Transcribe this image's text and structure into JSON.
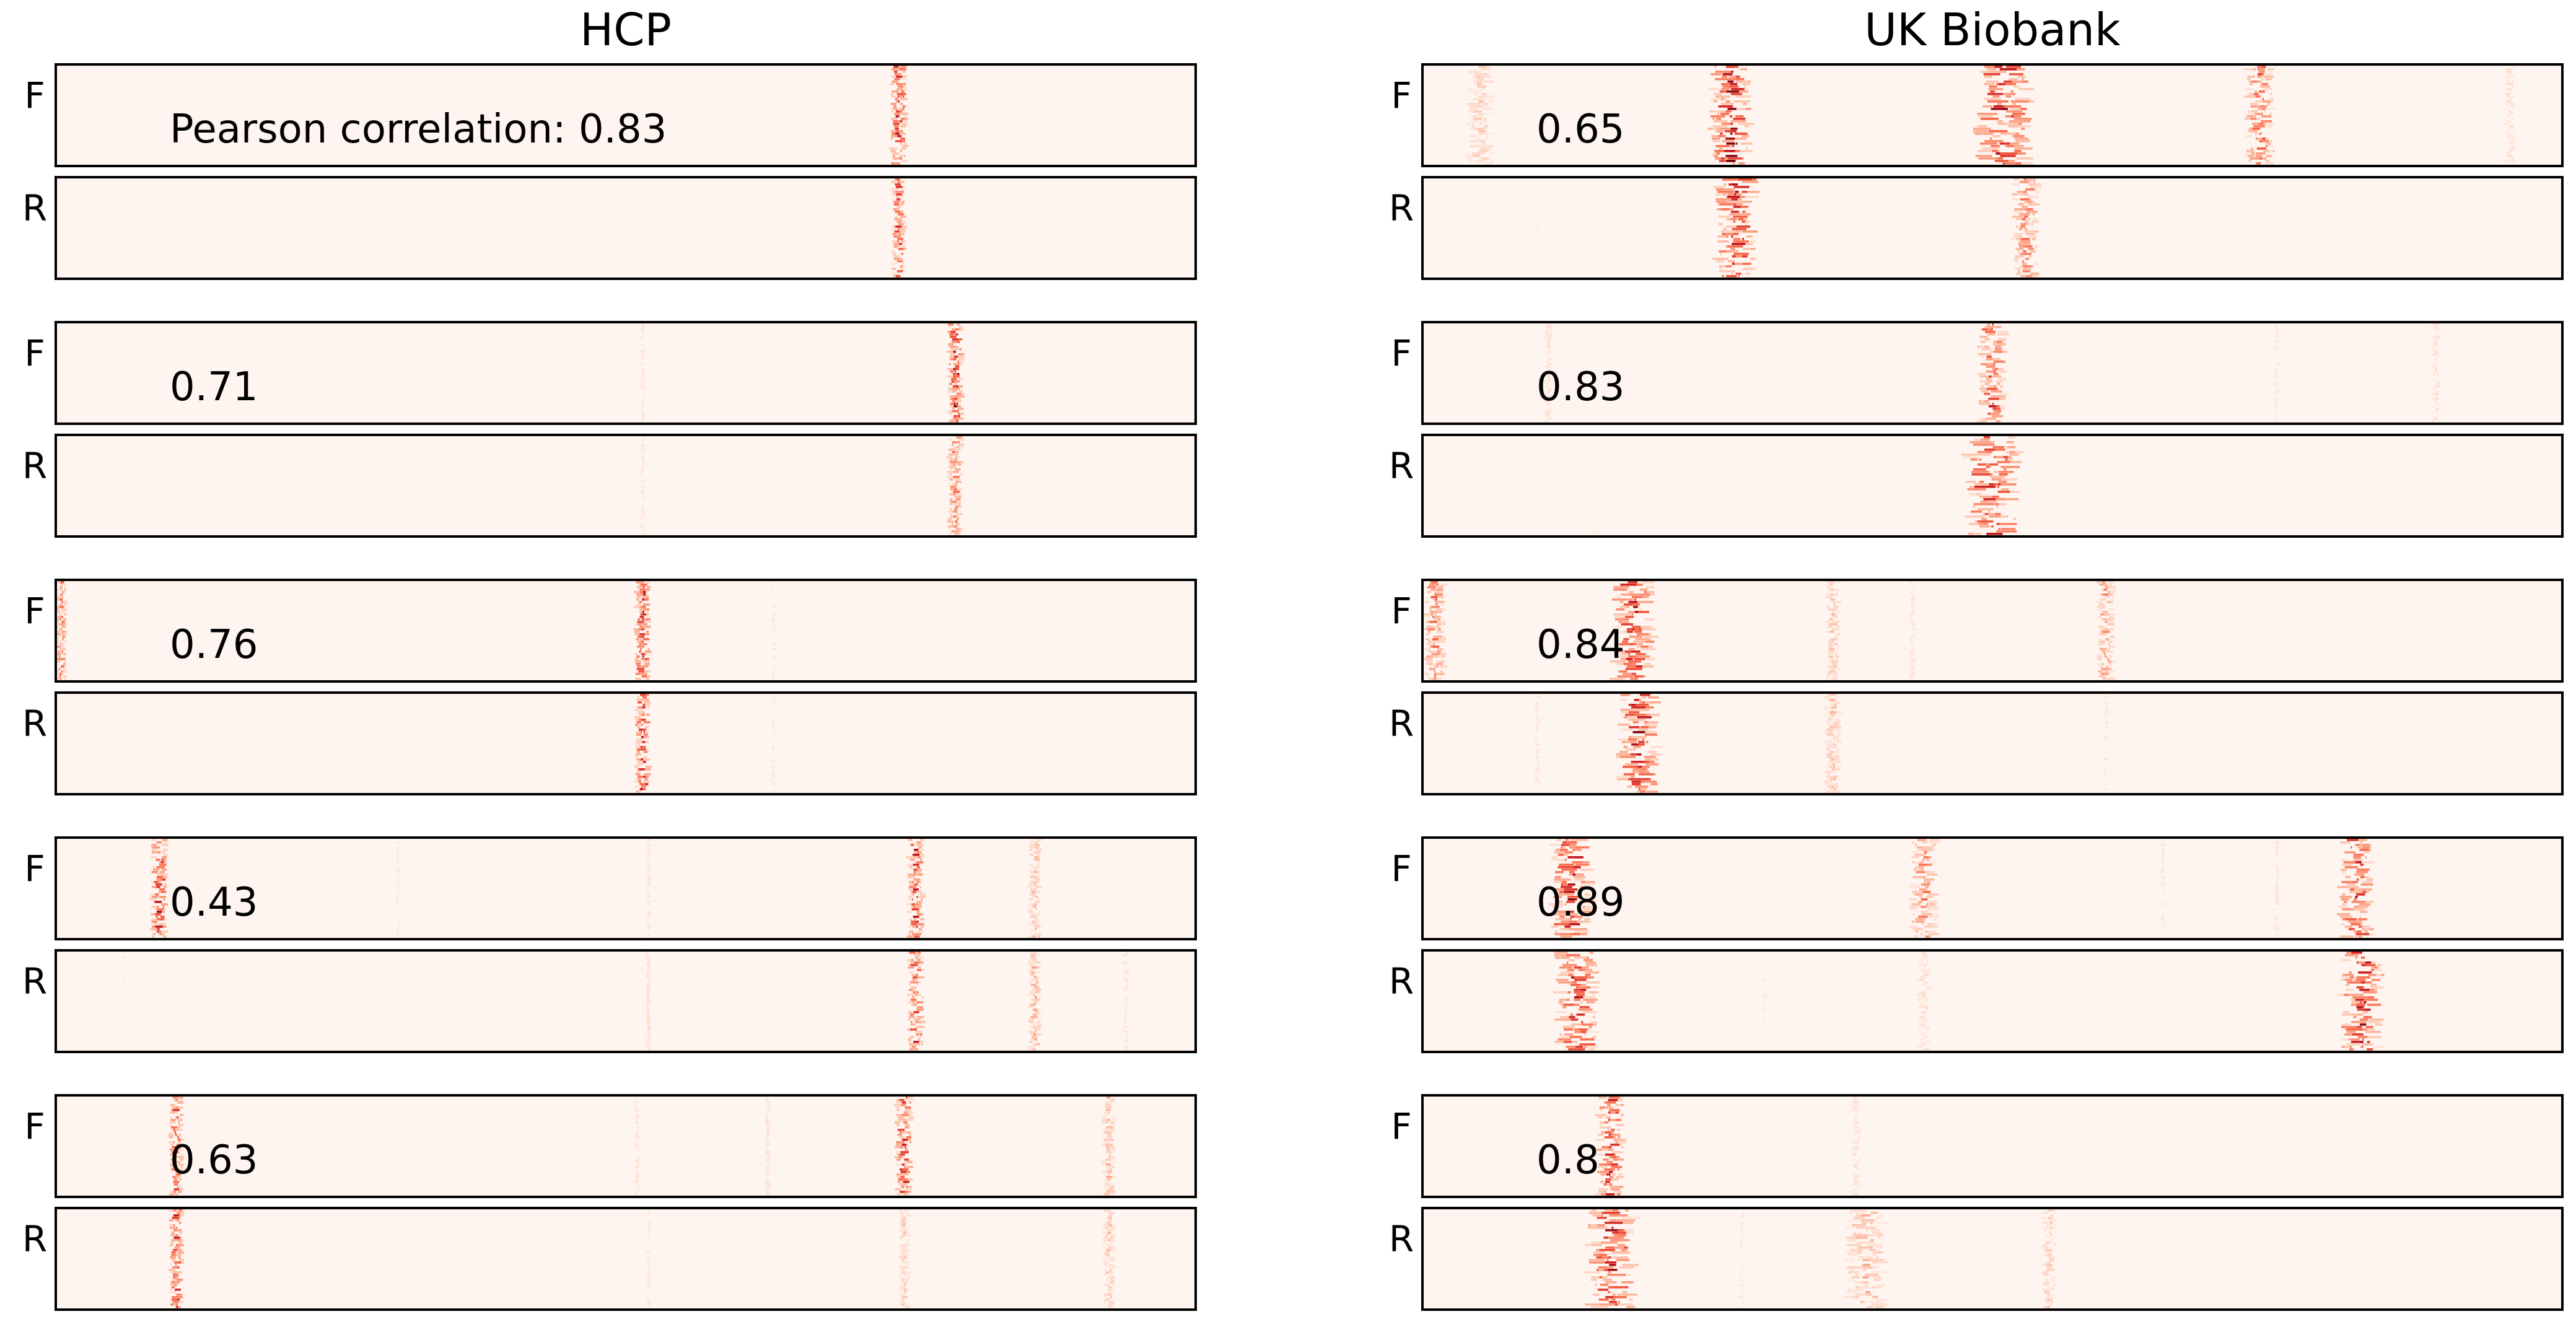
{
  "chart_data": {
    "type": "heatmap",
    "colormap": "Reds",
    "background_color": "#fff5f0",
    "row_labels": [
      "F",
      "R"
    ],
    "columns": [
      {
        "title": "HCP",
        "pairs": [
          {
            "corr_text": "Pearson correlation: 0.83",
            "correlation": 0.83,
            "F": [
              {
                "pos": 0.74,
                "w": 0.012,
                "s": 0.95
              }
            ],
            "R": [
              {
                "pos": 0.74,
                "w": 0.01,
                "s": 0.75
              }
            ]
          },
          {
            "corr_text": "0.71",
            "correlation": 0.71,
            "F": [
              {
                "pos": 0.79,
                "w": 0.011,
                "s": 0.95
              },
              {
                "pos": 0.515,
                "w": 0.004,
                "s": 0.1
              }
            ],
            "R": [
              {
                "pos": 0.79,
                "w": 0.011,
                "s": 0.6
              },
              {
                "pos": 0.515,
                "w": 0.004,
                "s": 0.1
              }
            ]
          },
          {
            "corr_text": "0.76",
            "correlation": 0.76,
            "F": [
              {
                "pos": 0.515,
                "w": 0.011,
                "s": 0.9
              },
              {
                "pos": 0.004,
                "w": 0.007,
                "s": 0.7
              },
              {
                "pos": 0.63,
                "w": 0.004,
                "s": 0.08
              }
            ],
            "R": [
              {
                "pos": 0.515,
                "w": 0.011,
                "s": 0.9
              },
              {
                "pos": 0.63,
                "w": 0.004,
                "s": 0.08
              }
            ]
          },
          {
            "corr_text": "0.43",
            "correlation": 0.43,
            "F": [
              {
                "pos": 0.09,
                "w": 0.012,
                "s": 0.9
              },
              {
                "pos": 0.755,
                "w": 0.012,
                "s": 0.85
              },
              {
                "pos": 0.86,
                "w": 0.009,
                "s": 0.35
              },
              {
                "pos": 0.52,
                "w": 0.004,
                "s": 0.1
              },
              {
                "pos": 0.3,
                "w": 0.004,
                "s": 0.08
              }
            ],
            "R": [
              {
                "pos": 0.755,
                "w": 0.012,
                "s": 0.8
              },
              {
                "pos": 0.86,
                "w": 0.009,
                "s": 0.4
              },
              {
                "pos": 0.52,
                "w": 0.004,
                "s": 0.15
              },
              {
                "pos": 0.94,
                "w": 0.005,
                "s": 0.1
              },
              {
                "pos": 0.06,
                "w": 0.004,
                "s": 0.06
              }
            ]
          },
          {
            "corr_text": "0.63",
            "correlation": 0.63,
            "F": [
              {
                "pos": 0.105,
                "w": 0.01,
                "s": 0.8
              },
              {
                "pos": 0.745,
                "w": 0.012,
                "s": 0.9
              },
              {
                "pos": 0.925,
                "w": 0.009,
                "s": 0.35
              },
              {
                "pos": 0.625,
                "w": 0.004,
                "s": 0.15
              },
              {
                "pos": 0.51,
                "w": 0.004,
                "s": 0.12
              }
            ],
            "R": [
              {
                "pos": 0.105,
                "w": 0.01,
                "s": 0.85
              },
              {
                "pos": 0.745,
                "w": 0.008,
                "s": 0.25
              },
              {
                "pos": 0.925,
                "w": 0.009,
                "s": 0.3
              },
              {
                "pos": 0.52,
                "w": 0.004,
                "s": 0.1
              }
            ]
          }
        ]
      },
      {
        "title": "UK Biobank",
        "pairs": [
          {
            "corr_text": "0.65",
            "correlation": 0.65,
            "F": [
              {
                "pos": 0.27,
                "w": 0.03,
                "s": 1.0
              },
              {
                "pos": 0.51,
                "w": 0.04,
                "s": 1.0
              },
              {
                "pos": 0.735,
                "w": 0.02,
                "s": 0.7
              },
              {
                "pos": 0.05,
                "w": 0.02,
                "s": 0.25
              },
              {
                "pos": 0.955,
                "w": 0.008,
                "s": 0.15
              }
            ],
            "R": [
              {
                "pos": 0.275,
                "w": 0.03,
                "s": 0.95
              },
              {
                "pos": 0.53,
                "w": 0.02,
                "s": 0.6
              },
              {
                "pos": 0.1,
                "w": 0.005,
                "s": 0.05
              }
            ]
          },
          {
            "corr_text": "0.83",
            "correlation": 0.83,
            "F": [
              {
                "pos": 0.5,
                "w": 0.02,
                "s": 0.8
              },
              {
                "pos": 0.11,
                "w": 0.006,
                "s": 0.15
              },
              {
                "pos": 0.89,
                "w": 0.006,
                "s": 0.15
              },
              {
                "pos": 0.75,
                "w": 0.005,
                "s": 0.08
              }
            ],
            "R": [
              {
                "pos": 0.5,
                "w": 0.04,
                "s": 0.95
              },
              {
                "pos": 0.15,
                "w": 0.006,
                "s": 0.05
              }
            ]
          },
          {
            "corr_text": "0.84",
            "correlation": 0.84,
            "F": [
              {
                "pos": 0.185,
                "w": 0.03,
                "s": 0.95
              },
              {
                "pos": 0.01,
                "w": 0.015,
                "s": 0.6
              },
              {
                "pos": 0.36,
                "w": 0.01,
                "s": 0.3
              },
              {
                "pos": 0.6,
                "w": 0.012,
                "s": 0.5
              },
              {
                "pos": 0.43,
                "w": 0.005,
                "s": 0.12
              }
            ],
            "R": [
              {
                "pos": 0.19,
                "w": 0.03,
                "s": 0.95
              },
              {
                "pos": 0.36,
                "w": 0.012,
                "s": 0.3
              },
              {
                "pos": 0.1,
                "w": 0.005,
                "s": 0.1
              },
              {
                "pos": 0.6,
                "w": 0.005,
                "s": 0.08
              }
            ]
          },
          {
            "corr_text": "0.89",
            "correlation": 0.89,
            "F": [
              {
                "pos": 0.13,
                "w": 0.03,
                "s": 0.95
              },
              {
                "pos": 0.44,
                "w": 0.02,
                "s": 0.55
              },
              {
                "pos": 0.82,
                "w": 0.025,
                "s": 0.9
              },
              {
                "pos": 0.75,
                "w": 0.005,
                "s": 0.1
              },
              {
                "pos": 0.65,
                "w": 0.005,
                "s": 0.08
              }
            ],
            "R": [
              {
                "pos": 0.135,
                "w": 0.03,
                "s": 0.95
              },
              {
                "pos": 0.825,
                "w": 0.03,
                "s": 0.95
              },
              {
                "pos": 0.44,
                "w": 0.01,
                "s": 0.15
              },
              {
                "pos": 0.3,
                "w": 0.005,
                "s": 0.06
              }
            ]
          },
          {
            "corr_text": "0.8",
            "correlation": 0.8,
            "F": [
              {
                "pos": 0.165,
                "w": 0.02,
                "s": 0.9
              },
              {
                "pos": 0.38,
                "w": 0.008,
                "s": 0.12
              },
              {
                "pos": 0.55,
                "w": 0.005,
                "s": 0.05
              }
            ],
            "R": [
              {
                "pos": 0.165,
                "w": 0.035,
                "s": 0.9
              },
              {
                "pos": 0.39,
                "w": 0.03,
                "s": 0.35
              },
              {
                "pos": 0.55,
                "w": 0.01,
                "s": 0.25
              },
              {
                "pos": 0.28,
                "w": 0.005,
                "s": 0.08
              }
            ]
          }
        ]
      }
    ]
  }
}
